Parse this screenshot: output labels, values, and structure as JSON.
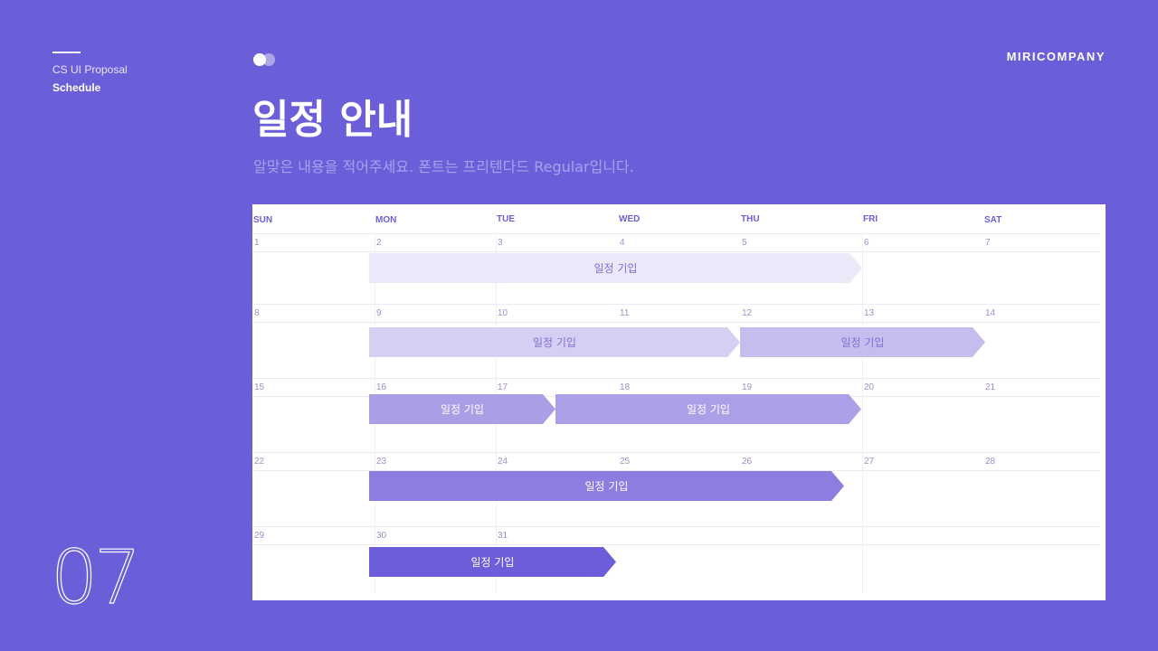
{
  "header": {
    "breadcrumb": "CS UI Proposal",
    "section": "Schedule",
    "brand": "MIRICOMPANY",
    "title": "일정 안내",
    "subtitle": "알맞은 내용을 적어주세요. 폰트는 프리텐다드 Regular입니다.",
    "page_number": "07"
  },
  "calendar": {
    "weekdays": [
      "SUN",
      "MON",
      "TUE",
      "WED",
      "THU",
      "FRI",
      "SAT"
    ],
    "weeks": [
      [
        "1",
        "2",
        "3",
        "4",
        "5",
        "6",
        "7"
      ],
      [
        "8",
        "9",
        "10",
        "11",
        "12",
        "13",
        "14"
      ],
      [
        "15",
        "16",
        "17",
        "18",
        "19",
        "20",
        "21"
      ],
      [
        "22",
        "23",
        "24",
        "25",
        "26",
        "27",
        "28"
      ],
      [
        "29",
        "30",
        "31",
        "",
        "",
        "",
        ""
      ]
    ],
    "events": [
      {
        "label": "일정 기입",
        "week": 1,
        "start_day": "2",
        "end_day": "6",
        "color": "#ece8fa",
        "text_color": "#7b6fd6"
      },
      {
        "label": "일정 기입",
        "week": 2,
        "start_day": "9",
        "end_day": "12",
        "color": "#d6cff4",
        "text_color": "#7b6fd6"
      },
      {
        "label": "일정 기입",
        "week": 2,
        "start_day": "12",
        "end_day": "14",
        "color": "#c6bdef",
        "text_color": "#7b6fd6"
      },
      {
        "label": "일정 기입",
        "week": 3,
        "start_day": "16",
        "end_day": "17",
        "color": "#a99fe7",
        "text_color": "#ffffff"
      },
      {
        "label": "일정 기입",
        "week": 3,
        "start_day": "17",
        "end_day": "20",
        "color": "#aaa0e7",
        "text_color": "#ffffff"
      },
      {
        "label": "일정 기입",
        "week": 4,
        "start_day": "23",
        "end_day": "26",
        "color": "#8c7ee1",
        "text_color": "#ffffff"
      },
      {
        "label": "일정 기입",
        "week": 5,
        "start_day": "30",
        "end_day": "31",
        "color": "#6c5edb",
        "text_color": "#ffffff"
      }
    ]
  }
}
